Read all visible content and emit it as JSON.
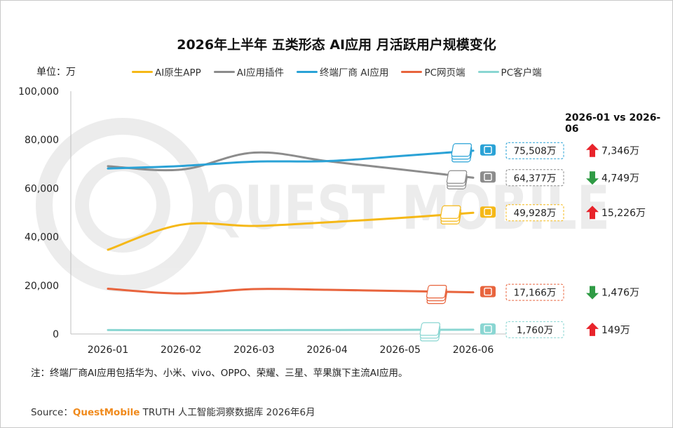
{
  "title": "2026年上半年 五类形态 AI应用 月活跃用户规模变化",
  "unit_label": "单位：万",
  "compare_header": "2026-01 vs 2026-06",
  "note": "注：终端厂商AI应用包括华为、小米、vivo、OPPO、荣耀、三星、苹果旗下主流AI应用。",
  "source": {
    "prefix": "Source：",
    "brand": "QuestMobile",
    "suffix": " TRUTH 人工智能洞察数据库 2026年6月"
  },
  "watermark": "QUEST MOBILE",
  "chart_data": {
    "type": "line",
    "title": "2026年上半年 五类形态 AI应用 月活跃用户规模变化",
    "ylabel": "单位：万",
    "xlabel": "",
    "ylim": [
      0,
      100000
    ],
    "yticks": [
      0,
      20000,
      40000,
      60000,
      80000,
      100000
    ],
    "ytick_labels": [
      "0",
      "20,000",
      "40,000",
      "60,000",
      "80,000",
      "100,000"
    ],
    "categories": [
      "2026-01",
      "2026-02",
      "2026-03",
      "2026-04",
      "2026-05",
      "2026-06"
    ],
    "grid": false,
    "legend_position": "top",
    "series": [
      {
        "name": "AI原生APP",
        "color": "#f5b817",
        "icon": "app-icon",
        "values": [
          34702,
          45000,
          44500,
          46000,
          47800,
          49928
        ],
        "end_label": "49,928万",
        "change": "15,226万",
        "direction": "up"
      },
      {
        "name": "AI应用插件",
        "color": "#8c8c8c",
        "icon": "ai-plugin-icon",
        "values": [
          69126,
          67700,
          74700,
          71200,
          67800,
          64377
        ],
        "end_label": "64,377万",
        "change": "4,749万",
        "direction": "down"
      },
      {
        "name": "终端厂商 AI应用",
        "color": "#2aa2d6",
        "icon": "phone-icon",
        "values": [
          68162,
          69200,
          71000,
          71200,
          73300,
          75508
        ],
        "end_label": "75,508万",
        "change": "7,346万",
        "direction": "up"
      },
      {
        "name": "PC网页端",
        "color": "#e8643d",
        "icon": "monitor-icon",
        "values": [
          18642,
          16700,
          18500,
          18200,
          17700,
          17166
        ],
        "end_label": "17,166万",
        "change": "1,476万",
        "direction": "down"
      },
      {
        "name": "PC客户端",
        "color": "#8ad6d2",
        "icon": "cloud-desktop-icon",
        "values": [
          1611,
          1550,
          1600,
          1620,
          1700,
          1760
        ],
        "end_label": "1,760万",
        "change": "149万",
        "direction": "up"
      }
    ],
    "direction_colors": {
      "up": "#e8232a",
      "down": "#2f9b45"
    }
  }
}
